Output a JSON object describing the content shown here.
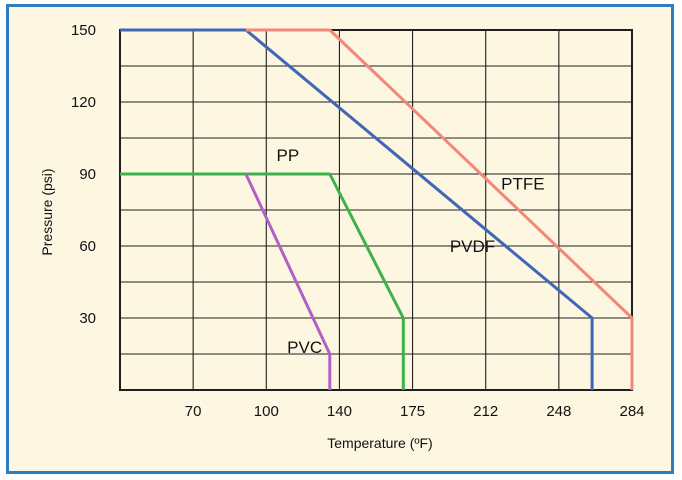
{
  "chart_data": {
    "type": "line",
    "title": "",
    "xlabel": "Temperature (ºF)",
    "ylabel": "Pressure (psi)",
    "x_ticks": [
      "70",
      "100",
      "140",
      "175",
      "212",
      "248",
      "284"
    ],
    "y_ticks": [
      "150",
      "120",
      "90",
      "60",
      "30"
    ],
    "xlim": [
      40,
      284
    ],
    "ylim": [
      0,
      150
    ],
    "grid": true,
    "legend": "none",
    "colors": {
      "background": "#fdf7e2",
      "border": "#2f7fc0",
      "grid": "#1f1f1f",
      "PVC": "#b25fc6",
      "PP": "#3cb34a",
      "PVDF": "#3f67b5",
      "PTFE": "#f2877a"
    },
    "series": [
      {
        "name": "PP",
        "color": "#3cb34a",
        "points": [
          [
            40,
            90
          ],
          [
            140,
            90
          ],
          [
            175,
            30
          ],
          [
            175,
            0
          ]
        ]
      },
      {
        "name": "PVC",
        "color": "#b25fc6",
        "points": [
          [
            100,
            90
          ],
          [
            140,
            15
          ],
          [
            140,
            0
          ]
        ]
      },
      {
        "name": "PVDF",
        "color": "#3f67b5",
        "points": [
          [
            40,
            150
          ],
          [
            100,
            150
          ],
          [
            265,
            30
          ],
          [
            265,
            0
          ]
        ]
      },
      {
        "name": "PTFE",
        "color": "#f2877a",
        "points": [
          [
            100,
            150
          ],
          [
            140,
            150
          ],
          [
            284,
            30
          ],
          [
            284,
            0
          ]
        ]
      }
    ]
  }
}
